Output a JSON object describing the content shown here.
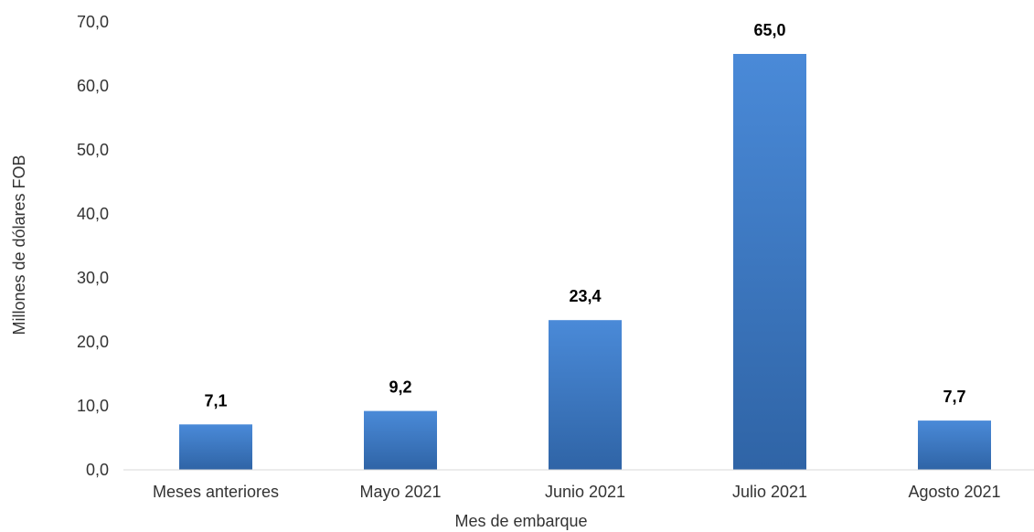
{
  "chart_data": {
    "type": "bar",
    "categories": [
      "Meses anteriores",
      "Mayo 2021",
      "Junio 2021",
      "Julio 2021",
      "Agosto 2021"
    ],
    "values": [
      7.1,
      9.2,
      23.4,
      65.0,
      7.7
    ],
    "data_labels": [
      "7,1",
      "9,2",
      "23,4",
      "65,0",
      "7,7"
    ],
    "title": "",
    "xlabel": "Mes de embarque",
    "ylabel": "Millones de dólares FOB",
    "ylim": [
      0,
      70
    ],
    "yticks": [
      0,
      10,
      20,
      30,
      40,
      50,
      60,
      70
    ],
    "ytick_labels": [
      "0,0",
      "10,0",
      "20,0",
      "30,0",
      "40,0",
      "50,0",
      "60,0",
      "70,0"
    ],
    "grid": false,
    "legend": "none",
    "colors": {
      "bar_top": "#4a8ad8",
      "bar_bottom": "#2f64a6",
      "axis": "#d9d9d9"
    }
  }
}
